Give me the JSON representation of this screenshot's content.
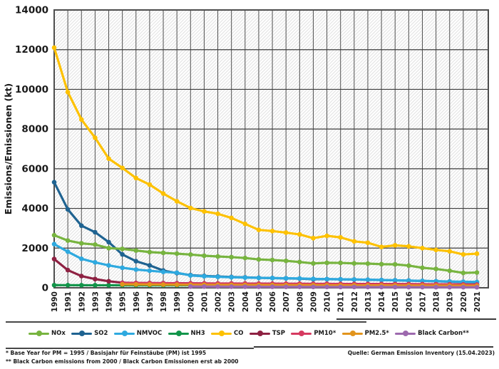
{
  "y_axis": {
    "title": "Emissions/Emissionen (kt)"
  },
  "chart_data": {
    "type": "line",
    "title": "",
    "xlabel": "",
    "ylabel": "Emissions/Emissionen (kt)",
    "ylim": [
      0,
      14000
    ],
    "ytick_step": 2000,
    "grid": "both",
    "plot_background": "diagonal-hatch",
    "marker": "circle",
    "legend_position": "bottom",
    "x": [
      1990,
      1991,
      1992,
      1993,
      1994,
      1995,
      1996,
      1997,
      1998,
      1999,
      2000,
      2001,
      2002,
      2003,
      2004,
      2005,
      2006,
      2007,
      2008,
      2009,
      2010,
      2011,
      2012,
      2013,
      2014,
      2015,
      2016,
      2017,
      2018,
      2019,
      2020,
      2021
    ],
    "series": [
      {
        "name": "NOx",
        "color": "#77B43F",
        "values": [
          2650,
          2380,
          2240,
          2180,
          2000,
          1960,
          1880,
          1800,
          1760,
          1720,
          1675,
          1615,
          1580,
          1545,
          1500,
          1430,
          1400,
          1360,
          1300,
          1230,
          1260,
          1255,
          1230,
          1220,
          1190,
          1180,
          1120,
          1010,
          950,
          860,
          750,
          770
        ]
      },
      {
        "name": "SO2",
        "color": "#1F6391",
        "values": [
          5320,
          3950,
          3130,
          2800,
          2300,
          1680,
          1340,
          1130,
          870,
          740,
          640,
          600,
          570,
          545,
          525,
          505,
          490,
          475,
          460,
          430,
          435,
          425,
          415,
          405,
          390,
          375,
          360,
          345,
          330,
          310,
          290,
          275
        ]
      },
      {
        "name": "NMVOC",
        "color": "#2EA9DF",
        "values": [
          2200,
          1820,
          1460,
          1280,
          1130,
          1010,
          920,
          860,
          800,
          760,
          620,
          580,
          550,
          530,
          515,
          500,
          490,
          480,
          470,
          450,
          440,
          430,
          420,
          410,
          395,
          380,
          365,
          350,
          335,
          320,
          305,
          295
        ]
      },
      {
        "name": "NH3",
        "color": "#12954A",
        "values": [
          135,
          132,
          130,
          128,
          127,
          126,
          125,
          125,
          124,
          124,
          123,
          122,
          122,
          121,
          120,
          120,
          119,
          118,
          118,
          117,
          116,
          116,
          115,
          114,
          113,
          112,
          111,
          110,
          108,
          106,
          104,
          102
        ]
      },
      {
        "name": "CO",
        "color": "#FDC100",
        "values": [
          12100,
          9860,
          8480,
          7560,
          6510,
          6040,
          5530,
          5200,
          4750,
          4360,
          4020,
          3850,
          3730,
          3520,
          3220,
          2920,
          2860,
          2780,
          2690,
          2500,
          2620,
          2540,
          2340,
          2270,
          2060,
          2140,
          2090,
          2000,
          1910,
          1840,
          1680,
          1720
        ]
      },
      {
        "name": "TSP",
        "color": "#8E2142",
        "values": [
          1450,
          890,
          590,
          440,
          330,
          255,
          245,
          240,
          235,
          230,
          225,
          222,
          218,
          215,
          212,
          210,
          208,
          205,
          202,
          200,
          198,
          196,
          194,
          192,
          190,
          188,
          185,
          182,
          178,
          172,
          165,
          160
        ]
      },
      {
        "name": "PM10*",
        "color": "#D63A60",
        "values": [
          null,
          null,
          null,
          null,
          null,
          245,
          238,
          232,
          228,
          224,
          220,
          216,
          213,
          210,
          207,
          205,
          202,
          200,
          198,
          196,
          194,
          192,
          190,
          188,
          186,
          184,
          181,
          178,
          174,
          168,
          161,
          156
        ]
      },
      {
        "name": "PM2.5*",
        "color": "#E2941C",
        "values": [
          null,
          null,
          null,
          null,
          null,
          175,
          170,
          165,
          160,
          156,
          152,
          149,
          146,
          143,
          140,
          138,
          136,
          134,
          132,
          130,
          128,
          126,
          124,
          122,
          120,
          118,
          116,
          114,
          112,
          110,
          106,
          103
        ]
      },
      {
        "name": "Black Carbon**",
        "color": "#9D69AE",
        "values": [
          null,
          null,
          null,
          null,
          null,
          null,
          null,
          null,
          null,
          null,
          62,
          60,
          58,
          56,
          54,
          52,
          50,
          48,
          46,
          44,
          42,
          41,
          40,
          38,
          37,
          36,
          34,
          33,
          32,
          30,
          28,
          27
        ]
      }
    ]
  },
  "footnotes": {
    "pm_base_year": "* Base Year for PM = 1995 / Basisjahr für Feinstäube (PM) ist 1995",
    "black_carbon": "** Black Carbon emissions from 2000 / Black Carbon Emissionen erst ab 2000"
  },
  "source": "Quelle:  German Emission Inventory (15.04.2023)"
}
